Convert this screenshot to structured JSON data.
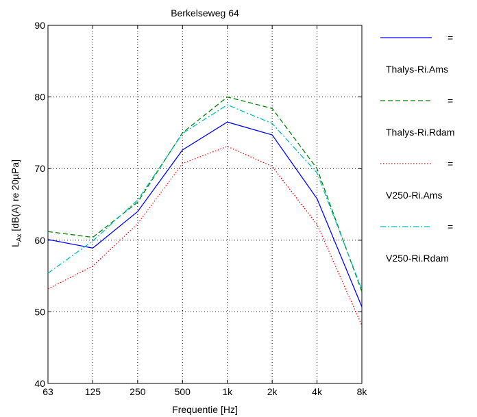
{
  "chart_data": {
    "type": "line",
    "title": "Berkelseweg 64",
    "xlabel": "Frequentie [Hz]",
    "ylabel_main": "L",
    "ylabel_sub": "Ax",
    "ylabel_rest": " [dB(A) re 20µPa]",
    "categories": [
      "63",
      "125",
      "250",
      "500",
      "1k",
      "2k",
      "4k",
      "8k"
    ],
    "yticks": [
      "40",
      "50",
      "60",
      "70",
      "80",
      "90"
    ],
    "ylim": [
      40,
      90
    ],
    "grid": true,
    "legend_position": "right, outside plot",
    "series": [
      {
        "name": "Thalys-Ri.Ams",
        "color": "#0000ff",
        "dash": "solid",
        "values": [
          60.1,
          58.9,
          64.0,
          72.6,
          76.5,
          74.7,
          65.8,
          50.7
        ]
      },
      {
        "name": "Thalys-Ri.Rdam",
        "color": "#008000",
        "dash": "dashed",
        "values": [
          61.2,
          60.4,
          65.3,
          75.0,
          80.0,
          78.4,
          70.0,
          52.8
        ]
      },
      {
        "name": "V250-Ri.Ams",
        "color": "#ff0000",
        "dash": "dotted",
        "values": [
          53.2,
          56.4,
          62.3,
          70.7,
          73.1,
          70.3,
          62.2,
          48.1
        ]
      },
      {
        "name": "V250-Ri.Rdam",
        "color": "#00bfbf",
        "dash": "dashdot",
        "values": [
          55.4,
          59.9,
          65.6,
          74.9,
          78.9,
          76.3,
          69.4,
          53.1
        ]
      }
    ],
    "legend_equals": "="
  }
}
